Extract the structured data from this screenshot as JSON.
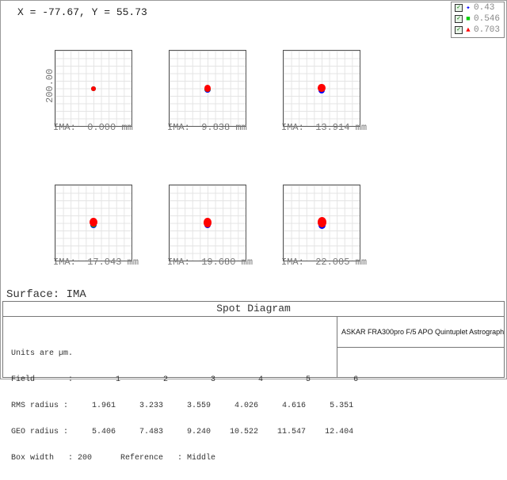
{
  "coordinate_readout": "X = -77.67, Y = 55.73",
  "legend": [
    {
      "marker": "✦",
      "color": "#0000ff",
      "label": "0.43",
      "checked": true
    },
    {
      "marker": "■",
      "color": "#00cc00",
      "label": "0.546",
      "checked": true
    },
    {
      "marker": "▲",
      "color": "#ff0000",
      "label": "0.703",
      "checked": true
    }
  ],
  "scale_label": "200.00",
  "fields": [
    {
      "label": "IMA:  0.000 mm",
      "offset": 0
    },
    {
      "label": "IMA:  9.838 mm",
      "offset": 1
    },
    {
      "label": "IMA:  13.914 mm",
      "offset": 1.3
    },
    {
      "label": "IMA:  17.043 mm",
      "offset": 1.6
    },
    {
      "label": "IMA:  19.680 mm",
      "offset": 1.8
    },
    {
      "label": "IMA:  22.005 mm",
      "offset": 2
    }
  ],
  "surface": "Surface: IMA",
  "panel": {
    "title": "Spot Diagram",
    "stats": [
      "Units are µm.",
      "Field       :         1         2         3         4         5         6",
      "RMS radius :     1.961     3.233     3.559     4.026     4.616     5.351",
      "GEO radius :     5.406     7.483     9.240    10.522    11.547    12.404",
      "Box width   : 200      Reference   : Middle"
    ],
    "description": "ASKAR FRA300pro F/5 APO Quintuplet Astrograph"
  }
}
